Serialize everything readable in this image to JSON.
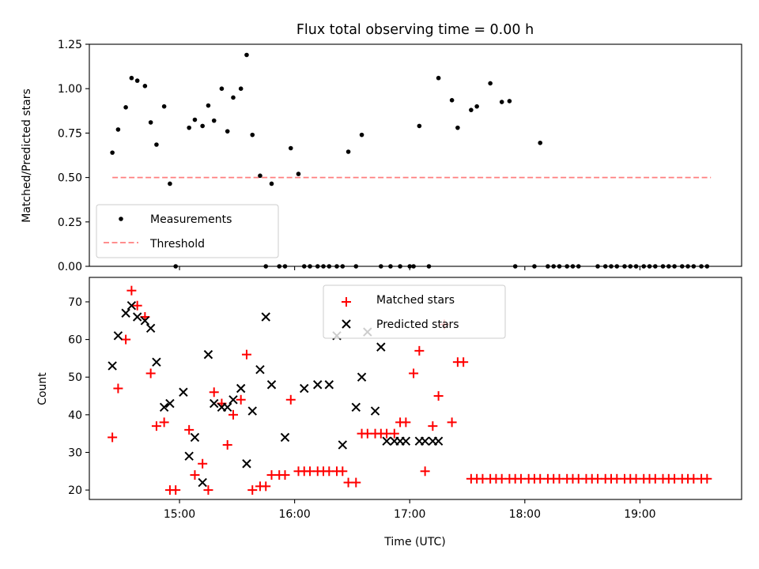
{
  "figure": {
    "title": "Flux total observing time = 0.00 h"
  },
  "chart_data": [
    {
      "type": "scatter",
      "title": "Flux total observing time = 0.00 h",
      "xlabel": "",
      "ylabel": "Matched/Predicted stars",
      "x_range": [
        "14:13",
        "19:53"
      ],
      "ylim": [
        0,
        1.25
      ],
      "y_ticks": [
        "0.00",
        "0.25",
        "0.50",
        "0.75",
        "1.00",
        "1.25"
      ],
      "x_ticks_unlabeled": [
        "15:00",
        "16:00",
        "17:00",
        "18:00",
        "19:00"
      ],
      "legend_position": "lower-left",
      "threshold": {
        "name": "Threshold",
        "value": 0.5,
        "x_start": "14:25",
        "x_end": "19:37",
        "color": "#ff7f7f",
        "style": "dashed"
      },
      "series": [
        {
          "name": "Measurements",
          "color": "#000000",
          "marker": "dot",
          "x": [
            "14:25",
            "14:28",
            "14:32",
            "14:35",
            "14:38",
            "14:42",
            "14:45",
            "14:48",
            "14:52",
            "14:55",
            "14:58",
            "15:05",
            "15:08",
            "15:12",
            "15:15",
            "15:18",
            "15:22",
            "15:25",
            "15:28",
            "15:32",
            "15:35",
            "15:38",
            "15:42",
            "15:45",
            "15:48",
            "15:52",
            "15:55",
            "15:58",
            "16:02",
            "16:05",
            "16:08",
            "16:12",
            "16:15",
            "16:18",
            "16:22",
            "16:25",
            "16:28",
            "16:32",
            "16:35",
            "16:45",
            "16:50",
            "16:55",
            "17:00",
            "17:02",
            "17:05",
            "17:10",
            "17:15",
            "17:22",
            "17:25",
            "17:32",
            "17:35",
            "17:42",
            "17:48",
            "17:52",
            "17:55",
            "18:05",
            "18:08",
            "18:12",
            "18:15",
            "18:18",
            "18:22",
            "18:25",
            "18:28",
            "18:38",
            "18:42",
            "18:45",
            "18:48",
            "18:52",
            "18:55",
            "18:58",
            "19:02",
            "19:05",
            "19:08",
            "19:12",
            "19:15",
            "19:18",
            "19:22",
            "19:25",
            "19:28",
            "19:32",
            "19:35"
          ],
          "values": [
            0.64,
            0.77,
            0.895,
            1.06,
            1.045,
            1.015,
            0.81,
            0.685,
            0.9,
            0.465,
            0.0,
            0.78,
            0.825,
            0.79,
            0.905,
            0.82,
            1.0,
            0.76,
            0.95,
            1.0,
            1.19,
            0.74,
            0.51,
            0.0,
            0.465,
            0.0,
            0.0,
            0.665,
            0.52,
            0.0,
            0.0,
            0.0,
            0.0,
            0.0,
            0.0,
            0.0,
            0.645,
            0.0,
            0.74,
            0.0,
            0.0,
            0.0,
            0.0,
            0.0,
            0.79,
            0.0,
            1.06,
            0.935,
            0.78,
            0.88,
            0.9,
            1.03,
            0.925,
            0.93,
            0.0,
            0.0,
            0.695,
            0.0,
            0.0,
            0.0,
            0.0,
            0.0,
            0.0,
            0.0,
            0.0,
            0.0,
            0.0,
            0.0,
            0.0,
            0.0,
            0.0,
            0.0,
            0.0,
            0.0,
            0.0,
            0.0,
            0.0,
            0.0,
            0.0,
            0.0,
            0.0
          ]
        }
      ]
    },
    {
      "type": "scatter",
      "xlabel": "Time (UTC)",
      "ylabel": "Count",
      "x_range": [
        "14:13",
        "19:53"
      ],
      "ylim": [
        17.5,
        76.5
      ],
      "y_ticks": [
        "20",
        "30",
        "40",
        "50",
        "60",
        "70"
      ],
      "x_ticks": [
        "15:00",
        "16:00",
        "17:00",
        "18:00",
        "19:00"
      ],
      "legend_position": "top-center",
      "series": [
        {
          "name": "Matched stars",
          "color": "#ff0000",
          "marker": "plus",
          "x": [
            "14:25",
            "14:28",
            "14:32",
            "14:35",
            "14:38",
            "14:42",
            "14:45",
            "14:48",
            "14:52",
            "14:55",
            "14:58",
            "15:05",
            "15:08",
            "15:12",
            "15:15",
            "15:18",
            "15:22",
            "15:25",
            "15:28",
            "15:32",
            "15:35",
            "15:38",
            "15:42",
            "15:45",
            "15:48",
            "15:52",
            "15:55",
            "15:58",
            "16:02",
            "16:05",
            "16:08",
            "16:12",
            "16:15",
            "16:18",
            "16:22",
            "16:25",
            "16:28",
            "16:32",
            "16:35",
            "16:38",
            "16:42",
            "16:45",
            "16:48",
            "16:52",
            "16:55",
            "16:58",
            "17:02",
            "17:05",
            "17:08",
            "17:12",
            "17:15",
            "17:18",
            "17:22",
            "17:25",
            "17:28",
            "17:32",
            "17:35",
            "17:38",
            "17:42",
            "17:45",
            "17:48",
            "17:52",
            "17:55",
            "17:58",
            "18:02",
            "18:05",
            "18:08",
            "18:12",
            "18:15",
            "18:18",
            "18:22",
            "18:25",
            "18:28",
            "18:32",
            "18:35",
            "18:38",
            "18:42",
            "18:45",
            "18:48",
            "18:52",
            "18:55",
            "18:58",
            "19:02",
            "19:05",
            "19:08",
            "19:12",
            "19:15",
            "19:18",
            "19:22",
            "19:25",
            "19:28",
            "19:32",
            "19:35"
          ],
          "values": [
            34,
            47,
            60,
            73,
            69,
            66,
            51,
            37,
            38,
            20,
            20,
            36,
            24,
            27,
            20,
            46,
            43,
            32,
            40,
            44,
            56,
            20,
            21,
            21,
            24,
            24,
            24,
            44,
            25,
            25,
            25,
            25,
            25,
            25,
            25,
            25,
            22,
            22,
            35,
            35,
            35,
            35,
            35,
            35,
            38,
            38,
            51,
            57,
            25,
            37,
            45,
            64,
            38,
            54,
            54,
            23,
            23,
            23,
            23,
            23,
            23,
            23,
            23,
            23,
            23,
            23,
            23,
            23,
            23,
            23,
            23,
            23,
            23,
            23,
            23,
            23,
            23,
            23,
            23,
            23,
            23,
            23,
            23,
            23,
            23,
            23,
            23,
            23,
            23,
            23,
            23,
            23,
            23
          ]
        },
        {
          "name": "Predicted stars",
          "color": "#000000",
          "marker": "x",
          "x": [
            "14:25",
            "14:28",
            "14:32",
            "14:35",
            "14:38",
            "14:42",
            "14:45",
            "14:48",
            "14:52",
            "14:55",
            "15:02",
            "15:05",
            "15:08",
            "15:12",
            "15:15",
            "15:18",
            "15:22",
            "15:25",
            "15:28",
            "15:32",
            "15:35",
            "15:38",
            "15:42",
            "15:45",
            "15:48",
            "15:55",
            "16:05",
            "16:12",
            "16:18",
            "16:22",
            "16:25",
            "16:32",
            "16:35",
            "16:38",
            "16:42",
            "16:45",
            "16:48",
            "16:52",
            "16:55",
            "16:58",
            "17:05",
            "17:08",
            "17:12",
            "17:15"
          ],
          "values": [
            53,
            61,
            67,
            69,
            66,
            65,
            63,
            54,
            42,
            43,
            46,
            29,
            34,
            22,
            56,
            43,
            42,
            42,
            44,
            47,
            27,
            41,
            52,
            66,
            48,
            34,
            47,
            48,
            48,
            61,
            32,
            42,
            50,
            62,
            41,
            58,
            33,
            33,
            33,
            33,
            33,
            33,
            33,
            33
          ]
        }
      ]
    }
  ]
}
